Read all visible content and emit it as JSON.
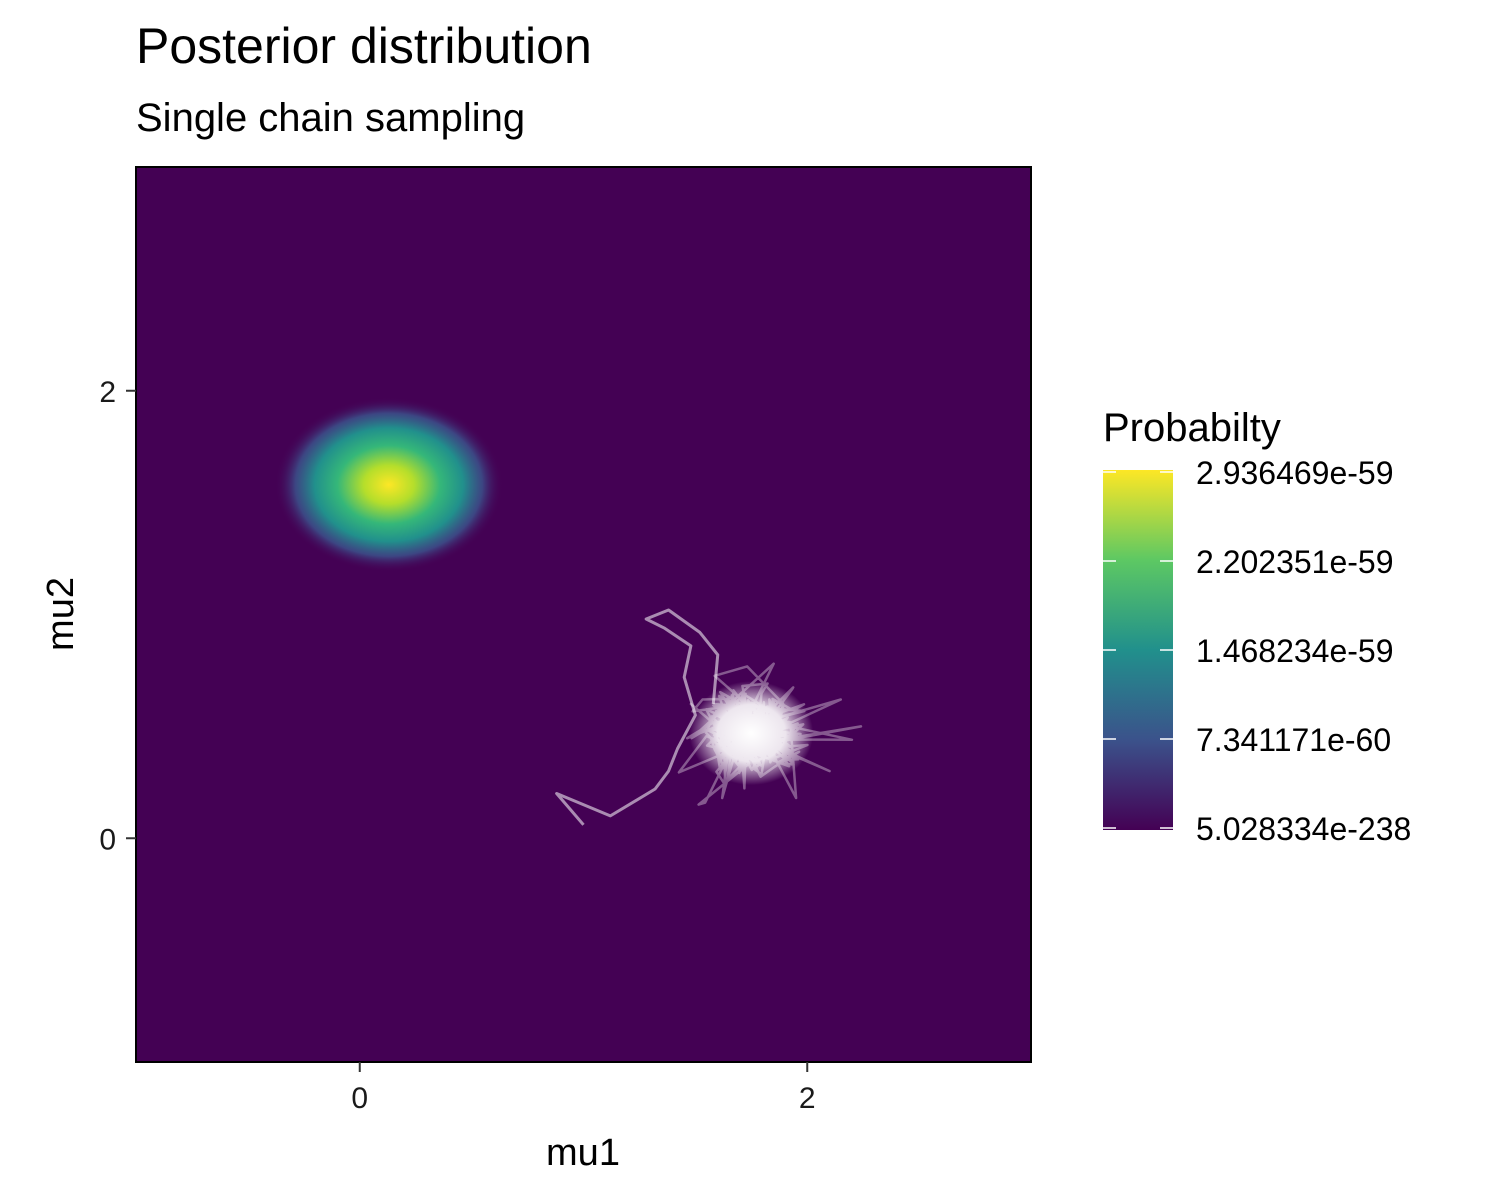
{
  "chart_data": {
    "type": "heatmap",
    "title": "Posterior distribution",
    "subtitle": "Single chain sampling",
    "xlabel": "mu1",
    "ylabel": "mu2",
    "xlim": [
      -1.0,
      3.0
    ],
    "ylim": [
      -1.0,
      3.0
    ],
    "x_ticks": [
      0,
      2
    ],
    "y_ticks": [
      0,
      2
    ],
    "grid": false,
    "density": {
      "peak_mu1": 0.13,
      "peak_mu2": 1.58,
      "sd_mu1": 0.17,
      "sd_mu2": 0.13,
      "colormap": "viridis",
      "colors": [
        "#440154",
        "#3b528b",
        "#21908c",
        "#5dc863",
        "#fde725"
      ]
    },
    "trace": {
      "color": "#ffffff",
      "center_mu1": 1.75,
      "center_mu2": 0.47,
      "initial_path": [
        [
          1.0,
          0.06
        ],
        [
          0.88,
          0.2
        ],
        [
          1.12,
          0.1
        ],
        [
          1.32,
          0.22
        ],
        [
          1.38,
          0.3
        ],
        [
          1.42,
          0.4
        ],
        [
          1.5,
          0.55
        ],
        [
          1.45,
          0.72
        ],
        [
          1.48,
          0.86
        ],
        [
          1.36,
          0.94
        ],
        [
          1.28,
          0.98
        ],
        [
          1.38,
          1.02
        ],
        [
          1.52,
          0.92
        ],
        [
          1.6,
          0.82
        ],
        [
          1.58,
          0.6
        ]
      ],
      "excursions": [
        [
          2.15,
          0.62
        ],
        [
          2.24,
          0.5
        ],
        [
          2.2,
          0.44
        ],
        [
          1.85,
          0.78
        ],
        [
          1.95,
          0.18
        ],
        [
          1.48,
          0.6
        ],
        [
          1.62,
          0.18
        ],
        [
          2.1,
          0.3
        ]
      ]
    },
    "legend": {
      "title": "Probabilty",
      "position": "right",
      "labels": [
        "2.936469e-59",
        "2.202351e-59",
        "1.468234e-59",
        "7.341171e-60",
        "5.028334e-238"
      ]
    }
  }
}
